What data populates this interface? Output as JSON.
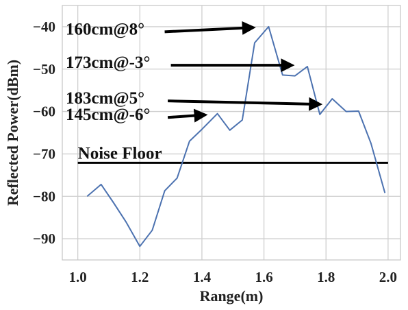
{
  "chart_data": {
    "type": "line",
    "xlabel": "Range(m)",
    "ylabel": "Reflected Power(dBm)",
    "xlim": [
      0.95,
      2.04
    ],
    "ylim": [
      -95,
      -35
    ],
    "xticks": [
      1.0,
      1.2,
      1.4,
      1.6,
      1.8,
      2.0
    ],
    "xtick_labels": [
      "1.0",
      "1.2",
      "1.4",
      "1.6",
      "1.8",
      "2.0"
    ],
    "yticks": [
      -40,
      -50,
      -60,
      -70,
      -80,
      -90
    ],
    "ytick_labels": [
      "−40",
      "−50",
      "−60",
      "−70",
      "−80",
      "−90"
    ],
    "grid": true,
    "series": [
      {
        "color": "#4c72b0",
        "x": [
          1.03,
          1.075,
          1.115,
          1.155,
          1.2,
          1.24,
          1.28,
          1.32,
          1.36,
          1.4,
          1.45,
          1.49,
          1.53,
          1.57,
          1.615,
          1.66,
          1.7,
          1.74,
          1.78,
          1.82,
          1.865,
          1.905,
          1.945,
          1.99
        ],
        "y": [
          -80,
          -77.2,
          -81.5,
          -86,
          -91.8,
          -88,
          -78.7,
          -75.7,
          -67,
          -64.2,
          -60.5,
          -64.4,
          -62,
          -43.8,
          -40,
          -51.4,
          -51.6,
          -49.4,
          -60.7,
          -57,
          -60,
          -59.9,
          -67.5,
          -79.2
        ]
      }
    ],
    "noise_floor": {
      "label": "Noise Floor",
      "y": -72.1,
      "x_range": [
        1.0,
        2.0
      ],
      "color": "#000000"
    },
    "annotations": [
      {
        "text": "160cm@8°",
        "arrow_from": [
          1.28,
          -41.2
        ],
        "arrow_to": [
          1.585,
          -40.2
        ]
      },
      {
        "text": "173cm@-3°",
        "arrow_from": [
          1.3,
          -49.1
        ],
        "arrow_to": [
          1.71,
          -49.1
        ]
      },
      {
        "text": "183cm@5°",
        "arrow_from": [
          1.29,
          -57.5
        ],
        "arrow_to": [
          1.8,
          -58.3
        ]
      },
      {
        "text": "145cm@-6°",
        "arrow_from": [
          1.29,
          -61.4
        ],
        "arrow_to": [
          1.43,
          -60.8
        ]
      }
    ]
  }
}
